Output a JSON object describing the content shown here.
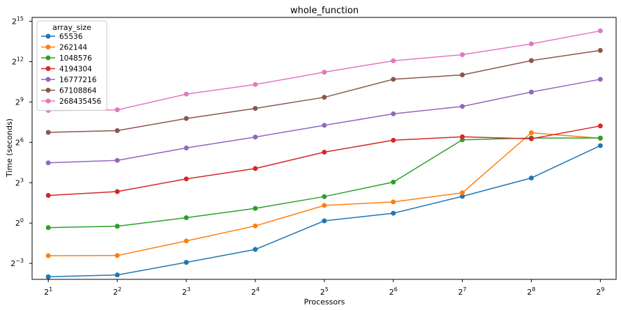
{
  "chart_data": {
    "type": "line",
    "title": "whole_function",
    "xlabel": "Processors",
    "ylabel": "Time (seconds)",
    "x_scale": "log2",
    "y_scale": "log2",
    "x_tick_exponents": [
      1,
      2,
      3,
      4,
      5,
      6,
      7,
      8,
      9
    ],
    "y_tick_exponents": [
      -3,
      0,
      3,
      6,
      9,
      12,
      15
    ],
    "tick_base": "2",
    "x": [
      2,
      4,
      8,
      16,
      32,
      64,
      128,
      256,
      512
    ],
    "xlim": [
      1.7,
      600
    ],
    "ylim": [
      0.055,
      40000
    ],
    "grid": false,
    "legend_title": "array_size",
    "legend_position": "top-left",
    "series": [
      {
        "name": "65536",
        "color": "#1f77b4",
        "values": [
          0.063,
          0.069,
          0.132,
          0.257,
          1.12,
          1.66,
          3.96,
          10.2,
          54.0
        ]
      },
      {
        "name": "262144",
        "color": "#ff7f0e",
        "values": [
          0.186,
          0.188,
          0.398,
          0.862,
          2.48,
          2.97,
          4.76,
          105.0,
          79.0
        ]
      },
      {
        "name": "1048576",
        "color": "#2ca02c",
        "values": [
          0.789,
          0.85,
          1.32,
          2.13,
          3.91,
          8.26,
          73.0,
          80.0,
          80.0
        ]
      },
      {
        "name": "4194304",
        "color": "#d62728",
        "values": [
          4.15,
          5.06,
          9.73,
          16.6,
          38.6,
          71.3,
          85.0,
          77.0,
          149.0
        ]
      },
      {
        "name": "16777216",
        "color": "#9467bd",
        "values": [
          22.3,
          25.3,
          47.9,
          84.1,
          154.0,
          278.0,
          408.0,
          856.0,
          1650.0
        ]
      },
      {
        "name": "67108864",
        "color": "#8c564b",
        "values": [
          107.0,
          117.0,
          219.0,
          368.0,
          652.0,
          1650.0,
          2070.0,
          4320.0,
          7290.0
        ]
      },
      {
        "name": "268435456",
        "color": "#e377c2",
        "values": [
          331.0,
          342.0,
          769.0,
          1260.0,
          2380.0,
          4290.0,
          5860.0,
          10240.0,
          20000.0
        ]
      }
    ]
  }
}
